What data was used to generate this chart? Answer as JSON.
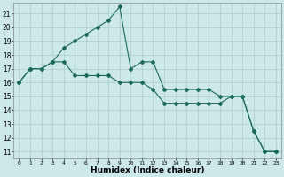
{
  "xlabel": "Humidex (Indice chaleur)",
  "ylabel": "",
  "bg_color": "#cce8e8",
  "grid_color": "#aacccc",
  "line_color": "#1a6b5a",
  "xlim": [
    -0.5,
    23.5
  ],
  "ylim": [
    10.5,
    21.8
  ],
  "yticks": [
    11,
    12,
    13,
    14,
    15,
    16,
    17,
    18,
    19,
    20,
    21
  ],
  "xticks": [
    0,
    1,
    2,
    3,
    4,
    5,
    6,
    7,
    8,
    9,
    10,
    11,
    12,
    13,
    14,
    15,
    16,
    17,
    18,
    19,
    20,
    21,
    22,
    23
  ],
  "series1_x": [
    0,
    1,
    2,
    3,
    4,
    5,
    6,
    7,
    8,
    9,
    10,
    11,
    12,
    13,
    14,
    15,
    16,
    17,
    18,
    19,
    20,
    21,
    22,
    23
  ],
  "series1_y": [
    16,
    17,
    17,
    17.5,
    18.5,
    19,
    19.5,
    20,
    20.5,
    21.5,
    17,
    17.5,
    17.5,
    15.5,
    15.5,
    15.5,
    15.5,
    15.5,
    15,
    15,
    15,
    12.5,
    11,
    11
  ],
  "series2_x": [
    0,
    1,
    2,
    3,
    4,
    5,
    6,
    7,
    8,
    9,
    10,
    11,
    12,
    13,
    14,
    15,
    16,
    17,
    18,
    19,
    20,
    21,
    22,
    23
  ],
  "series2_y": [
    16,
    17,
    17,
    17.5,
    17.5,
    16.5,
    16.5,
    16.5,
    16.5,
    16,
    16,
    16,
    15.5,
    14.5,
    14.5,
    14.5,
    14.5,
    14.5,
    14.5,
    15,
    15,
    12.5,
    11,
    11
  ],
  "marker": "D",
  "markersize": 2.0,
  "linewidth": 0.8,
  "tick_fontsize": 5.5,
  "xlabel_fontsize": 6.5
}
